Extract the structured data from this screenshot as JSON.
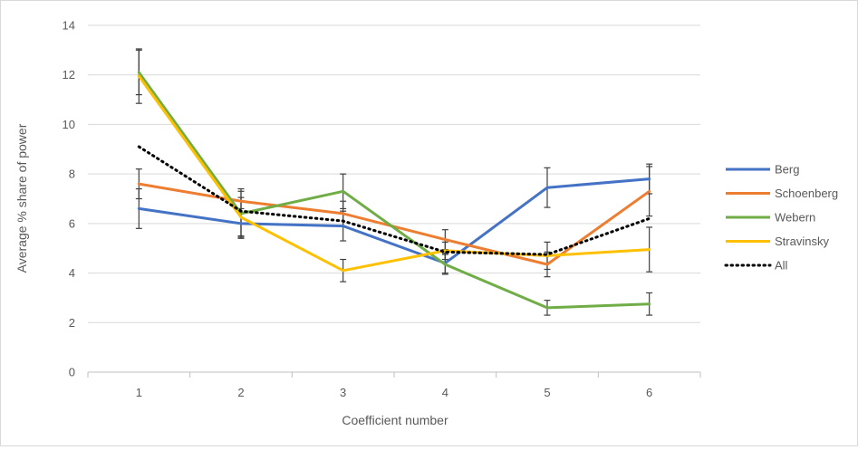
{
  "chart_data": {
    "type": "line",
    "title": "",
    "xlabel": "Coefficient number",
    "ylabel": "Average % share of power",
    "categories": [
      "1",
      "2",
      "3",
      "4",
      "5",
      "6"
    ],
    "ylim": [
      0,
      14
    ],
    "yticks": [
      0,
      2,
      4,
      6,
      8,
      10,
      12,
      14
    ],
    "grid": "horizontal",
    "legend_position": "right",
    "series": [
      {
        "name": "Berg",
        "color": "#4472C4",
        "style": "solid",
        "values": [
          6.6,
          6.0,
          5.9,
          4.4,
          7.45,
          7.8
        ],
        "error": [
          0.8,
          0.6,
          0.6,
          0.4,
          0.8,
          0.6
        ]
      },
      {
        "name": "Schoenberg",
        "color": "#ED7D31",
        "style": "solid",
        "values": [
          7.6,
          6.9,
          6.4,
          5.35,
          4.35,
          7.3
        ],
        "error": [
          0.6,
          0.5,
          0.5,
          0.4,
          0.5,
          1.0
        ]
      },
      {
        "name": "Webern",
        "color": "#70AD47",
        "style": "solid",
        "values": [
          12.1,
          6.4,
          7.3,
          4.35,
          2.6,
          2.75
        ],
        "error": [
          0.9,
          0.9,
          0.7,
          0.4,
          0.3,
          0.45
        ]
      },
      {
        "name": "Stravinsky",
        "color": "#FFC000",
        "style": "solid",
        "values": [
          11.95,
          6.25,
          4.1,
          4.9,
          4.7,
          4.95
        ],
        "error": [
          1.1,
          0.8,
          0.45,
          0.35,
          0.55,
          0.9
        ]
      },
      {
        "name": "All",
        "color": "#000000",
        "style": "dotted",
        "values": [
          9.1,
          6.5,
          6.1,
          4.85,
          4.75,
          6.2
        ],
        "error": null
      }
    ]
  }
}
